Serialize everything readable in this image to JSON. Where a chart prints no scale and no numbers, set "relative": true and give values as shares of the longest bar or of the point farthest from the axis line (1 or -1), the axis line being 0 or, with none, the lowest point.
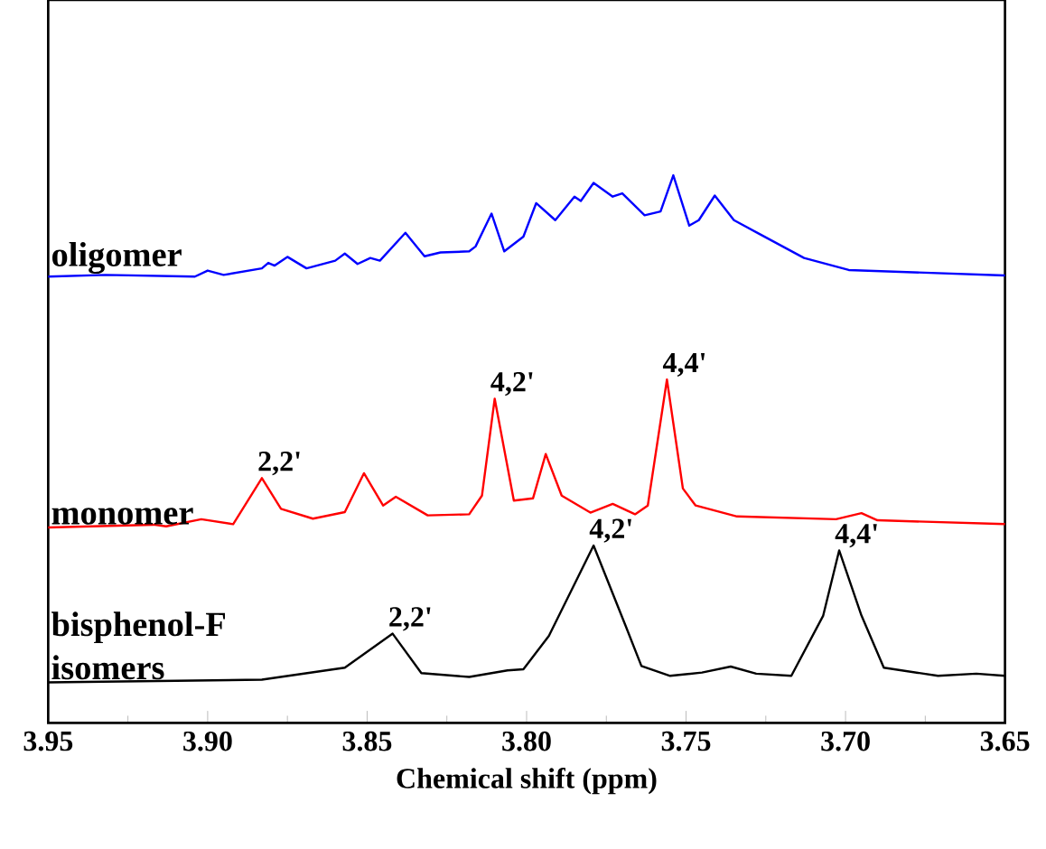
{
  "chart_data": {
    "type": "line",
    "relative": true,
    "xlabel": "Chemical shift (ppm)",
    "xlim": [
      3.95,
      3.65
    ],
    "xticks": [
      3.95,
      {
        "value": 3.9,
        "label": "3.90"
      },
      3.85,
      {
        "value": 3.8,
        "label": "3.80"
      },
      3.75,
      {
        "value": 3.7,
        "label": "3.70"
      },
      3.65
    ],
    "series": [
      {
        "name": "oligomer",
        "color": "#0000ff",
        "x": [
          3.95,
          3.932,
          3.904,
          3.9,
          3.895,
          3.883,
          3.881,
          3.879,
          3.875,
          3.869,
          3.86,
          3.857,
          3.853,
          3.849,
          3.846,
          3.838,
          3.832,
          3.827,
          3.818,
          3.816,
          3.811,
          3.807,
          3.801,
          3.797,
          3.791,
          3.785,
          3.783,
          3.779,
          3.773,
          3.77,
          3.763,
          3.758,
          3.754,
          3.749,
          3.746,
          3.741,
          3.735,
          3.728,
          3.713,
          3.699,
          3.65
        ],
        "values": [
          0.815,
          0.818,
          0.815,
          0.826,
          0.818,
          0.83,
          0.84,
          0.835,
          0.851,
          0.83,
          0.844,
          0.857,
          0.838,
          0.849,
          0.844,
          0.895,
          0.852,
          0.859,
          0.861,
          0.87,
          0.93,
          0.861,
          0.888,
          0.949,
          0.918,
          0.961,
          0.953,
          0.986,
          0.961,
          0.967,
          0.927,
          0.934,
          1.0,
          0.908,
          0.918,
          0.963,
          0.918,
          0.896,
          0.849,
          0.827,
          0.817
        ]
      },
      {
        "name": "monomer",
        "color": "#ff0000",
        "x": [
          3.95,
          3.917,
          3.913,
          3.902,
          3.892,
          3.883,
          3.877,
          3.867,
          3.857,
          3.851,
          3.845,
          3.841,
          3.831,
          3.818,
          3.814,
          3.81,
          3.804,
          3.798,
          3.794,
          3.789,
          3.78,
          3.773,
          3.766,
          3.762,
          3.756,
          3.751,
          3.747,
          3.734,
          3.703,
          3.695,
          3.69,
          3.65
        ],
        "values": [
          0.357,
          0.362,
          0.359,
          0.372,
          0.363,
          0.447,
          0.391,
          0.373,
          0.385,
          0.456,
          0.397,
          0.413,
          0.379,
          0.381,
          0.415,
          0.592,
          0.406,
          0.41,
          0.491,
          0.415,
          0.384,
          0.4,
          0.381,
          0.397,
          0.627,
          0.428,
          0.397,
          0.377,
          0.372,
          0.383,
          0.37,
          0.363
        ]
      },
      {
        "name": "bisphenol-F isomers",
        "color": "#000000",
        "x": [
          3.95,
          3.883,
          3.857,
          3.842,
          3.833,
          3.818,
          3.806,
          3.801,
          3.793,
          3.779,
          3.769,
          3.764,
          3.755,
          3.745,
          3.736,
          3.728,
          3.717,
          3.707,
          3.702,
          3.695,
          3.688,
          3.671,
          3.659,
          3.65
        ],
        "values": [
          0.074,
          0.079,
          0.101,
          0.163,
          0.091,
          0.084,
          0.096,
          0.098,
          0.159,
          0.324,
          0.178,
          0.104,
          0.086,
          0.092,
          0.103,
          0.09,
          0.086,
          0.196,
          0.315,
          0.196,
          0.101,
          0.086,
          0.09,
          0.086
        ]
      }
    ],
    "annotations": [
      {
        "text": "2,2'",
        "x": 3.883,
        "y": 0.447
      },
      {
        "text": "4,2'",
        "x": 3.81,
        "y": 0.592
      },
      {
        "text": "4,4'",
        "x": 3.756,
        "y": 0.627
      },
      {
        "text": "2,2'",
        "x": 3.842,
        "y": 0.163
      },
      {
        "text": "4,2'",
        "x": 3.779,
        "y": 0.324
      },
      {
        "text": "4,4'",
        "x": 3.702,
        "y": 0.315
      }
    ]
  }
}
